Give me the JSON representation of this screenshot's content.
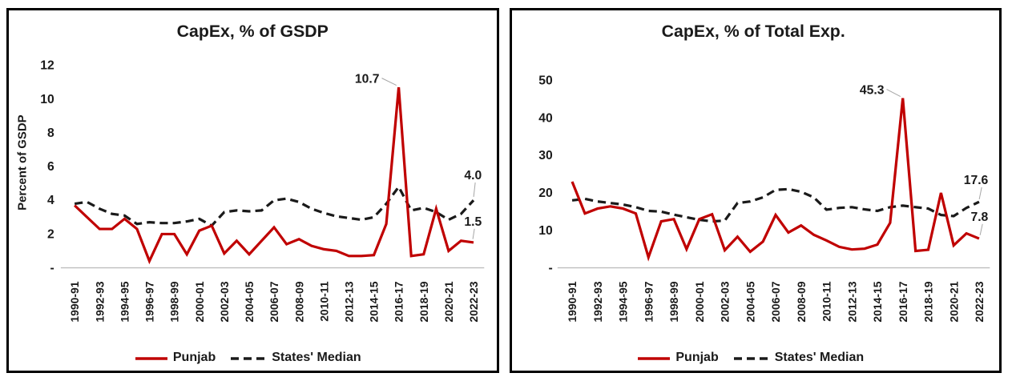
{
  "colors": {
    "punjab_line": "#C00000",
    "median_line": "#1A1A1A",
    "axis_baseline": "#BFBFBF",
    "leader_line": "#A6A6A6",
    "panel_border": "#000000",
    "background": "#FFFFFF"
  },
  "legend": {
    "punjab": "Punjab",
    "median": "States' Median"
  },
  "chart_data": [
    {
      "type": "line",
      "title": "CapEx, % of GSDP",
      "xlabel": "",
      "ylabel": "Percent of GSDP",
      "ylim": [
        0,
        12
      ],
      "y_ticks": [
        12,
        10,
        8,
        6,
        4,
        2,
        0
      ],
      "y_tick_labels": [
        "12",
        "10",
        "8",
        "6",
        "4",
        "2",
        "-"
      ],
      "grid": false,
      "legend_position": "bottom",
      "x_tick_step": 2,
      "x": [
        "1990-91",
        "1991-92",
        "1992-93",
        "1993-94",
        "1994-95",
        "1995-96",
        "1996-97",
        "1997-98",
        "1998-99",
        "1999-00",
        "2000-01",
        "2001-02",
        "2002-03",
        "2003-04",
        "2004-05",
        "2005-06",
        "2006-07",
        "2007-08",
        "2008-09",
        "2009-10",
        "2010-11",
        "2011-12",
        "2012-13",
        "2013-14",
        "2014-15",
        "2015-16",
        "2016-17",
        "2017-18",
        "2018-19",
        "2019-20",
        "2020-21",
        "2021-22",
        "2022-23"
      ],
      "series": [
        {
          "name": "States' Median",
          "color": "#1A1A1A",
          "line_style": "dashed",
          "values": [
            3.8,
            3.9,
            3.5,
            3.2,
            3.1,
            2.6,
            2.7,
            2.65,
            2.65,
            2.75,
            2.9,
            2.5,
            3.3,
            3.4,
            3.35,
            3.4,
            4.0,
            4.1,
            3.9,
            3.5,
            3.25,
            3.05,
            2.95,
            2.85,
            3.0,
            3.8,
            4.8,
            3.4,
            3.55,
            3.3,
            2.85,
            3.2,
            4.0
          ]
        },
        {
          "name": "Punjab",
          "color": "#C00000",
          "line_style": "solid",
          "values": [
            3.7,
            3.0,
            2.3,
            2.3,
            2.9,
            2.3,
            0.4,
            2.0,
            2.0,
            0.8,
            2.2,
            2.5,
            0.85,
            1.6,
            0.8,
            1.6,
            2.4,
            1.4,
            1.7,
            1.3,
            1.1,
            1.0,
            0.7,
            0.7,
            0.75,
            2.6,
            10.7,
            0.7,
            0.8,
            3.5,
            1.0,
            1.6,
            1.5
          ]
        }
      ],
      "annotations": [
        {
          "text": "10.7",
          "series": "Punjab",
          "year": "2016-17",
          "anchor": "end",
          "tx": 456,
          "ty": 91,
          "leader": [
            459,
            85,
            477,
            94
          ]
        },
        {
          "text": "4.0",
          "series": "States' Median",
          "year": "2022-23",
          "anchor": "end",
          "tx": 582,
          "ty": 212,
          "leader": [
            574,
            216,
            572,
            234
          ]
        },
        {
          "text": "1.5",
          "series": "Punjab",
          "year": "2022-23",
          "anchor": "end",
          "tx": 582,
          "ty": 270,
          "leader": [
            573,
            274,
            571,
            287
          ]
        }
      ]
    },
    {
      "type": "line",
      "title": "CapEx, % of Total Exp.",
      "xlabel": "",
      "ylabel": "",
      "ylim": [
        0,
        50
      ],
      "y_ticks": [
        50,
        40,
        30,
        20,
        10,
        0
      ],
      "y_tick_labels": [
        "50",
        "40",
        "30",
        "20",
        "10",
        "-"
      ],
      "grid": false,
      "legend_position": "bottom",
      "x_tick_step": 2,
      "x": [
        "1990-91",
        "1991-92",
        "1992-93",
        "1993-94",
        "1994-95",
        "1995-96",
        "1996-97",
        "1997-98",
        "1998-99",
        "1999-00",
        "2000-01",
        "2001-02",
        "2002-03",
        "2003-04",
        "2004-05",
        "2005-06",
        "2006-07",
        "2007-08",
        "2008-09",
        "2009-10",
        "2010-11",
        "2011-12",
        "2012-13",
        "2013-14",
        "2014-15",
        "2015-16",
        "2016-17",
        "2017-18",
        "2018-19",
        "2019-20",
        "2020-21",
        "2021-22",
        "2022-23"
      ],
      "series": [
        {
          "name": "States' Median",
          "color": "#1A1A1A",
          "line_style": "dashed",
          "values": [
            18.0,
            18.4,
            17.7,
            17.3,
            16.9,
            16.2,
            15.2,
            15.0,
            14.2,
            13.5,
            12.8,
            12.4,
            12.6,
            17.3,
            17.7,
            18.8,
            20.8,
            21.0,
            20.3,
            18.8,
            15.5,
            16.0,
            16.2,
            15.6,
            15.2,
            16.2,
            16.6,
            16.2,
            15.8,
            14.1,
            13.8,
            16.0,
            17.6
          ]
        },
        {
          "name": "Punjab",
          "color": "#C00000",
          "line_style": "solid",
          "values": [
            23.0,
            14.5,
            15.8,
            16.4,
            15.8,
            14.5,
            2.8,
            12.4,
            13.0,
            5.0,
            13.0,
            14.3,
            4.7,
            8.3,
            4.3,
            7.0,
            14.1,
            9.4,
            11.3,
            8.8,
            7.3,
            5.6,
            4.9,
            5.1,
            6.2,
            12.0,
            45.3,
            4.5,
            4.8,
            20.0,
            6.0,
            9.2,
            7.8
          ]
        }
      ],
      "annotations": [
        {
          "text": "45.3",
          "series": "Punjab",
          "year": "2016-17",
          "anchor": "end",
          "tx": 458,
          "ty": 105,
          "leader": [
            461,
            99,
            478,
            108
          ]
        },
        {
          "text": "17.6",
          "series": "States' Median",
          "year": "2022-23",
          "anchor": "end",
          "tx": 586,
          "ty": 218,
          "leader": [
            578,
            222,
            575,
            237
          ]
        },
        {
          "text": "7.8",
          "series": "Punjab",
          "year": "2022-23",
          "anchor": "end",
          "tx": 586,
          "ty": 264,
          "leader": [
            579,
            268,
            576,
            282
          ]
        }
      ]
    }
  ]
}
